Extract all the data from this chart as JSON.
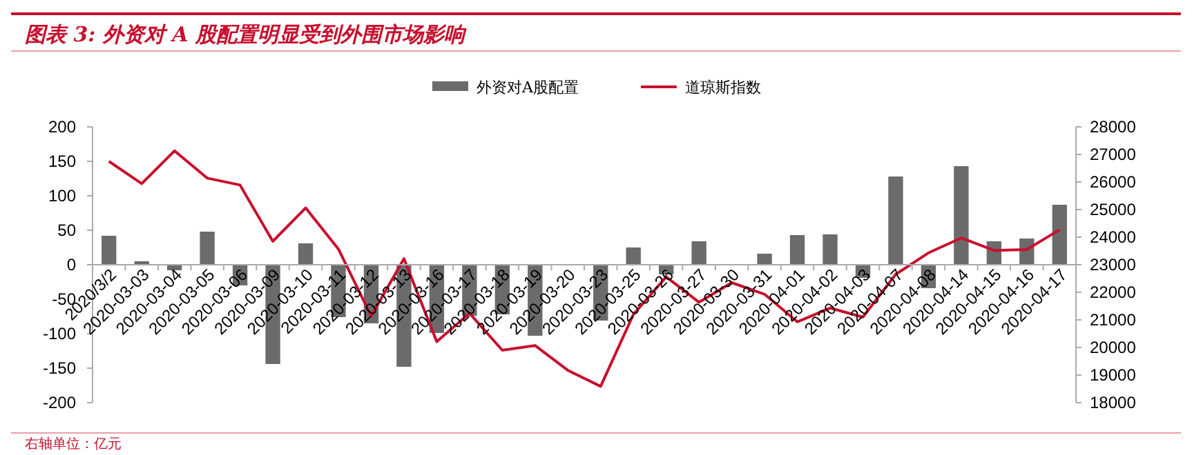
{
  "chart_data": {
    "type": "bar",
    "title": "图表 3:  外资对 A 股配置明显受到外围市场影响",
    "categories": [
      "2020/3/2",
      "2020-03-03",
      "2020-03-04",
      "2020-03-05",
      "2020-03-06",
      "2020-03-09",
      "2020-03-10",
      "2020-03-11",
      "2020-03-12",
      "2020-03-13",
      "2020-03-16",
      "2020-03-17",
      "2020-03-18",
      "2020-03-19",
      "2020-03-20",
      "2020-03-23",
      "2020-03-25",
      "2020-03-26",
      "2020-03-27",
      "2020-03-30",
      "2020-03-31",
      "2020-04-01",
      "2020-04-02",
      "2020-04-03",
      "2020-04-07",
      "2020-04-08",
      "2020-04-14",
      "2020-04-15",
      "2020-04-16",
      "2020-04-17"
    ],
    "series": [
      {
        "name": "外资对A股配置",
        "color": "#6b6b6b",
        "values": [
          42,
          5,
          -8,
          48,
          -30,
          -144,
          31,
          -76,
          -85,
          -148,
          -99,
          -74,
          -72,
          -103,
          0,
          -81,
          25,
          -14,
          34,
          -1,
          16,
          43,
          44,
          -19,
          128,
          -34,
          143,
          34,
          38,
          87
        ]
      },
      {
        "name": "道琼斯指数",
        "type": "line",
        "axis": "y2",
        "color": "#c8102e",
        "values": [
          26750,
          25940,
          27130,
          26140,
          25890,
          23850,
          25060,
          23570,
          21140,
          23220,
          20210,
          21240,
          19900,
          20070,
          19170,
          18590,
          21200,
          22560,
          21640,
          22350,
          21930,
          20930,
          21430,
          21100,
          22650,
          23430,
          23970,
          23520,
          23550,
          24270
        ]
      }
    ],
    "ylim": [
      -200,
      200
    ],
    "yticks": [
      -200,
      -150,
      -100,
      -50,
      0,
      50,
      100,
      150,
      200
    ],
    "y2lim": [
      18000,
      28000
    ],
    "y2ticks": [
      18000,
      19000,
      20000,
      21000,
      22000,
      23000,
      24000,
      25000,
      26000,
      27000,
      28000
    ],
    "legend": "top",
    "annotations": [
      "右轴单位：亿元"
    ]
  }
}
